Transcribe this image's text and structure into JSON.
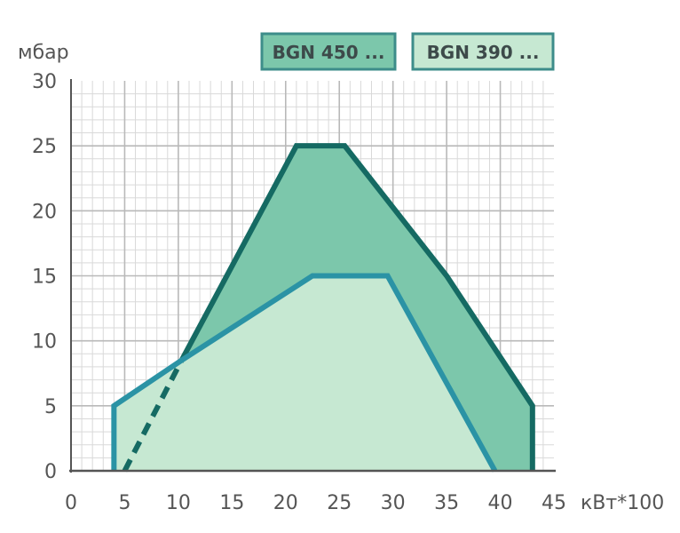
{
  "chart_data": {
    "type": "area",
    "xlabel": "кВт*100",
    "ylabel": "мбар",
    "xlim": [
      0,
      45
    ],
    "ylim": [
      0,
      30
    ],
    "x_ticks": [
      "0",
      "5",
      "10",
      "15",
      "20",
      "25",
      "30",
      "35",
      "40",
      "45"
    ],
    "y_ticks": [
      "0",
      "5",
      "10",
      "15",
      "20",
      "25",
      "30"
    ],
    "grid": true,
    "legend_position": "top-right",
    "series": [
      {
        "name": "BGN 450 ...",
        "fill": "#7cc7ab",
        "stroke": "#156a63",
        "points": [
          [
            5,
            0
          ],
          [
            10.3,
            8.5
          ],
          [
            21,
            25
          ],
          [
            25.5,
            25
          ],
          [
            35,
            15
          ],
          [
            43,
            5
          ],
          [
            43,
            0
          ]
        ],
        "dashed_segment": [
          [
            5,
            0
          ],
          [
            10.3,
            8.5
          ]
        ]
      },
      {
        "name": "BGN 390 ...",
        "fill": "#c6e8d2",
        "stroke": "#2b93a5",
        "points": [
          [
            4,
            0
          ],
          [
            4,
            5
          ],
          [
            10.3,
            8.5
          ],
          [
            22.5,
            15
          ],
          [
            29.5,
            15
          ],
          [
            39.5,
            0
          ]
        ]
      }
    ]
  }
}
